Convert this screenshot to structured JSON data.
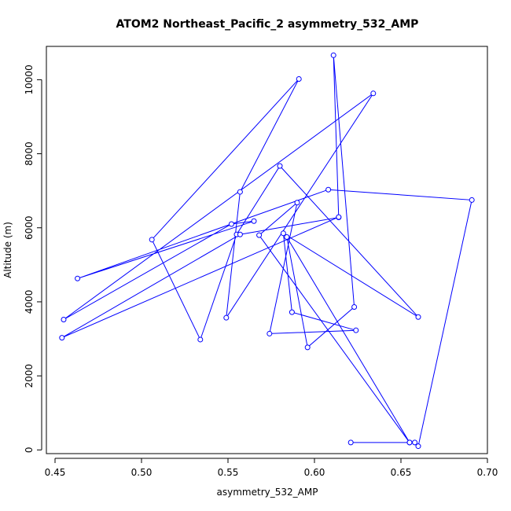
{
  "chart_data": {
    "type": "line",
    "title": "ATOM2 Northeast_Pacific_2 asymmetry_532_AMP",
    "xlabel": "asymmetry_532_AMP",
    "ylabel": "Altitude (m)",
    "xlim": [
      0.445,
      0.7
    ],
    "ylim": [
      -100,
      10900
    ],
    "xticks": [
      0.45,
      0.5,
      0.55,
      0.6,
      0.65,
      0.7
    ],
    "xtick_labels": [
      "0.45",
      "0.50",
      "0.55",
      "0.60",
      "0.65",
      "0.70"
    ],
    "yticks": [
      0,
      2000,
      4000,
      6000,
      8000,
      10000
    ],
    "ytick_labels": [
      "0",
      "2000",
      "4000",
      "6000",
      "8000",
      "10000"
    ],
    "grid": false,
    "series": [
      {
        "color": "#0000ff",
        "marker": "open-circle",
        "x": [
          0.621,
          0.655,
          0.658,
          0.66,
          0.691,
          0.608,
          0.463,
          0.565,
          0.552,
          0.455,
          0.634,
          0.549,
          0.557,
          0.591,
          0.506,
          0.534,
          0.555,
          0.58,
          0.66,
          0.582,
          0.587,
          0.624,
          0.574,
          0.59,
          0.568,
          0.655,
          0.584,
          0.596,
          0.623,
          0.611,
          0.614,
          0.557,
          0.454,
          0.614
        ],
        "y": [
          200,
          200,
          200,
          100,
          6750,
          7030,
          4630,
          6180,
          6100,
          3520,
          9630,
          3570,
          6970,
          10020,
          5680,
          2980,
          5820,
          7670,
          3590,
          5850,
          3720,
          3230,
          3140,
          6680,
          5800,
          200,
          5750,
          2770,
          3860,
          10660,
          6280,
          5820,
          3030,
          6290
        ]
      }
    ]
  }
}
